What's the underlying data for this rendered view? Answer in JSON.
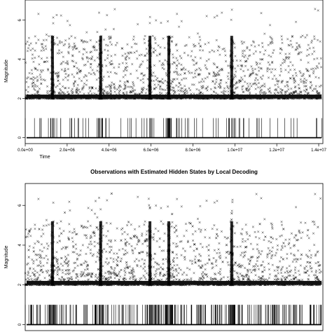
{
  "chart_data": [
    {
      "type": "scatter",
      "title": "",
      "xlabel": "Time",
      "ylabel": "Magnitude",
      "xlim": [
        0,
        14200000
      ],
      "ylim": [
        -0.3,
        7.1
      ],
      "x_ticks": [
        "0.0e+00",
        "2.0e+06",
        "4.0e+06",
        "6.0e+06",
        "8.0e+06",
        "1.0e+07",
        "1.2e+07",
        "1.4e+07"
      ],
      "x_tick_values": [
        0,
        2000000,
        4000000,
        6000000,
        8000000,
        10000000,
        12000000,
        14000000
      ],
      "y_ticks": [
        "0",
        "2",
        "4",
        "6"
      ],
      "y_tick_values": [
        0,
        2,
        4,
        6
      ],
      "magnitude_base": 2.0,
      "marker": "x",
      "state_band": {
        "low": 0,
        "high": 1
      },
      "cluster_times": [
        1300000,
        3600000,
        5950000,
        6850000,
        9850000
      ],
      "grid": false
    },
    {
      "type": "scatter",
      "title": "Observations with Estimated Hidden States by Local Decoding",
      "xlabel": "",
      "ylabel": "Magnitude",
      "xlim": [
        0,
        14200000
      ],
      "ylim": [
        -0.3,
        7.1
      ],
      "y_ticks": [
        "0",
        "2",
        "4",
        "6"
      ],
      "y_tick_values": [
        0,
        2,
        4,
        6
      ],
      "magnitude_base": 2.0,
      "marker": "x",
      "state_band": {
        "low": 0,
        "high": 1
      },
      "cluster_times": [
        1300000,
        3600000,
        5950000,
        6850000,
        9850000
      ],
      "grid": false
    }
  ]
}
